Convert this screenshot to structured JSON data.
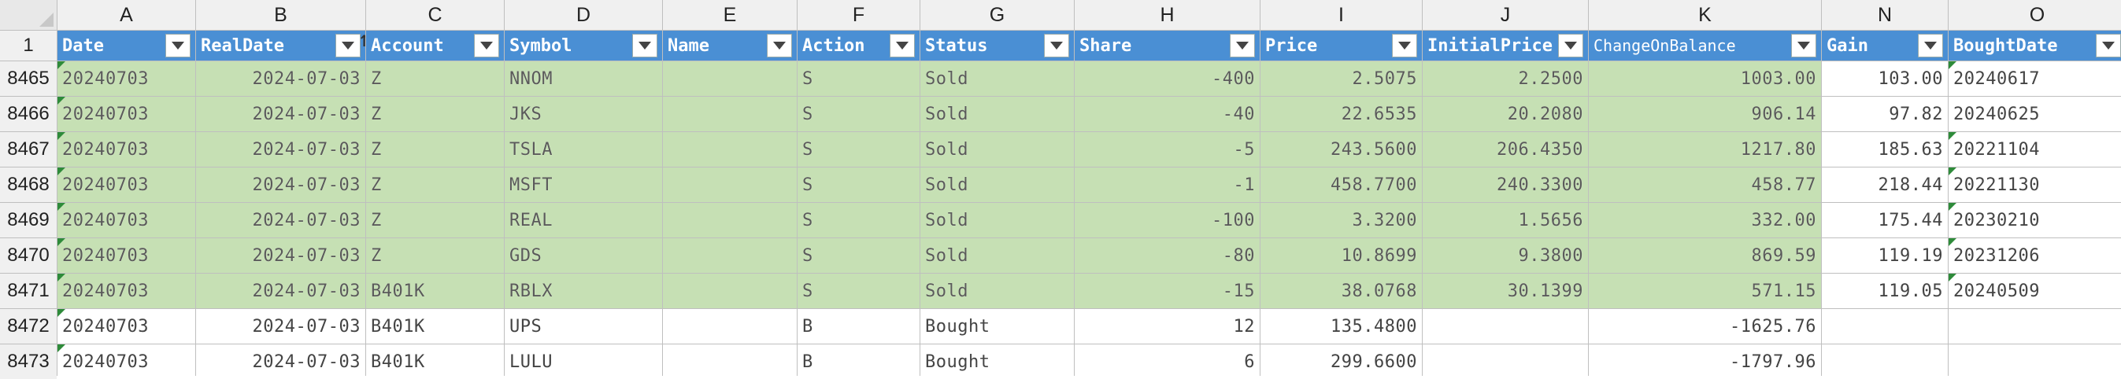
{
  "columns": [
    "A",
    "B",
    "C",
    "D",
    "E",
    "F",
    "G",
    "H",
    "I",
    "J",
    "K",
    "N",
    "O"
  ],
  "header_row_number": "1",
  "headers": [
    {
      "label": "Date",
      "sorted": false
    },
    {
      "label": "RealDate",
      "sorted": true
    },
    {
      "label": "Account",
      "sorted": false
    },
    {
      "label": "Symbol",
      "sorted": false
    },
    {
      "label": "Name",
      "sorted": false
    },
    {
      "label": "Action",
      "sorted": false
    },
    {
      "label": "Status",
      "sorted": false
    },
    {
      "label": "Share",
      "sorted": false
    },
    {
      "label": "Price",
      "sorted": false
    },
    {
      "label": "InitialPrice",
      "sorted": false
    },
    {
      "label": "ChangeOnBalance",
      "sorted": false
    },
    {
      "label": "Gain",
      "sorted": false
    },
    {
      "label": "BoughtDate",
      "sorted": false
    }
  ],
  "rows": [
    {
      "num": "8465",
      "highlight": true,
      "cells": [
        "20240703",
        "2024-07-03",
        "Z",
        "NNOM",
        "",
        "S",
        "Sold",
        "-400",
        "2.5075",
        "2.2500",
        "1003.00",
        "103.00",
        "20240617"
      ]
    },
    {
      "num": "8466",
      "highlight": true,
      "cells": [
        "20240703",
        "2024-07-03",
        "Z",
        "JKS",
        "",
        "S",
        "Sold",
        "-40",
        "22.6535",
        "20.2080",
        "906.14",
        "97.82",
        "20240625"
      ]
    },
    {
      "num": "8467",
      "highlight": true,
      "cells": [
        "20240703",
        "2024-07-03",
        "Z",
        "TSLA",
        "",
        "S",
        "Sold",
        "-5",
        "243.5600",
        "206.4350",
        "1217.80",
        "185.63",
        "20221104"
      ]
    },
    {
      "num": "8468",
      "highlight": true,
      "cells": [
        "20240703",
        "2024-07-03",
        "Z",
        "MSFT",
        "",
        "S",
        "Sold",
        "-1",
        "458.7700",
        "240.3300",
        "458.77",
        "218.44",
        "20221130"
      ]
    },
    {
      "num": "8469",
      "highlight": true,
      "cells": [
        "20240703",
        "2024-07-03",
        "Z",
        "REAL",
        "",
        "S",
        "Sold",
        "-100",
        "3.3200",
        "1.5656",
        "332.00",
        "175.44",
        "20230210"
      ]
    },
    {
      "num": "8470",
      "highlight": true,
      "cells": [
        "20240703",
        "2024-07-03",
        "Z",
        "GDS",
        "",
        "S",
        "Sold",
        "-80",
        "10.8699",
        "9.3800",
        "869.59",
        "119.19",
        "20231206"
      ]
    },
    {
      "num": "8471",
      "highlight": true,
      "cells": [
        "20240703",
        "2024-07-03",
        "B401K",
        "RBLX",
        "",
        "S",
        "Sold",
        "-15",
        "38.0768",
        "30.1399",
        "571.15",
        "119.05",
        "20240509"
      ]
    },
    {
      "num": "8472",
      "highlight": false,
      "cells": [
        "20240703",
        "2024-07-03",
        "B401K",
        "UPS",
        "",
        "B",
        "Bought",
        "12",
        "135.4800",
        "",
        "-1625.76",
        "",
        ""
      ]
    },
    {
      "num": "8473",
      "highlight": false,
      "cells": [
        "20240703",
        "2024-07-03",
        "B401K",
        "LULU",
        "",
        "B",
        "Bought",
        "6",
        "299.6600",
        "",
        "-1797.96",
        "",
        ""
      ]
    }
  ]
}
